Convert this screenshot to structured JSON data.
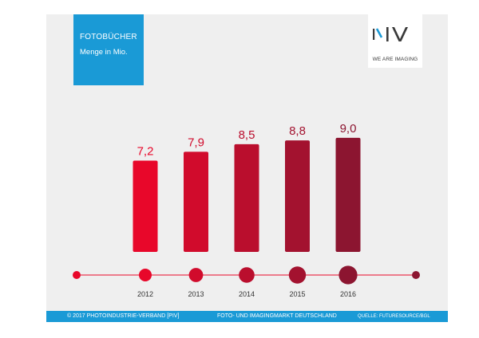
{
  "header": {
    "title": "FOTOBÜCHER",
    "subtitle": "Menge in Mio."
  },
  "logo": {
    "tagline": "WE ARE IMAGING",
    "icon": "piv-logo-icon"
  },
  "footer": {
    "copyright": "© 2017 PHOTOINDUSTRIE-VERBAND [PIV]",
    "center": "FOTO- UND IMAGINGMARKT DEUTSCHLAND",
    "source": "QUELLE: FUTURESOURCE/BGL"
  },
  "colors": {
    "accent_blue": "#1a9ad6",
    "bar_start": "#e8072a",
    "bar_end": "#8c1530",
    "panel_bg": "#efefef"
  },
  "chart_data": {
    "type": "bar",
    "categories": [
      "2012",
      "2013",
      "2014",
      "2015",
      "2016"
    ],
    "values": [
      7.2,
      7.9,
      8.5,
      8.8,
      9.0
    ],
    "value_labels": [
      "7,2",
      "7,9",
      "8,5",
      "8,8",
      "9,0"
    ],
    "title": "FOTOBÜCHER",
    "ylabel": "Menge in Mio.",
    "grid": false,
    "legend": "none"
  }
}
